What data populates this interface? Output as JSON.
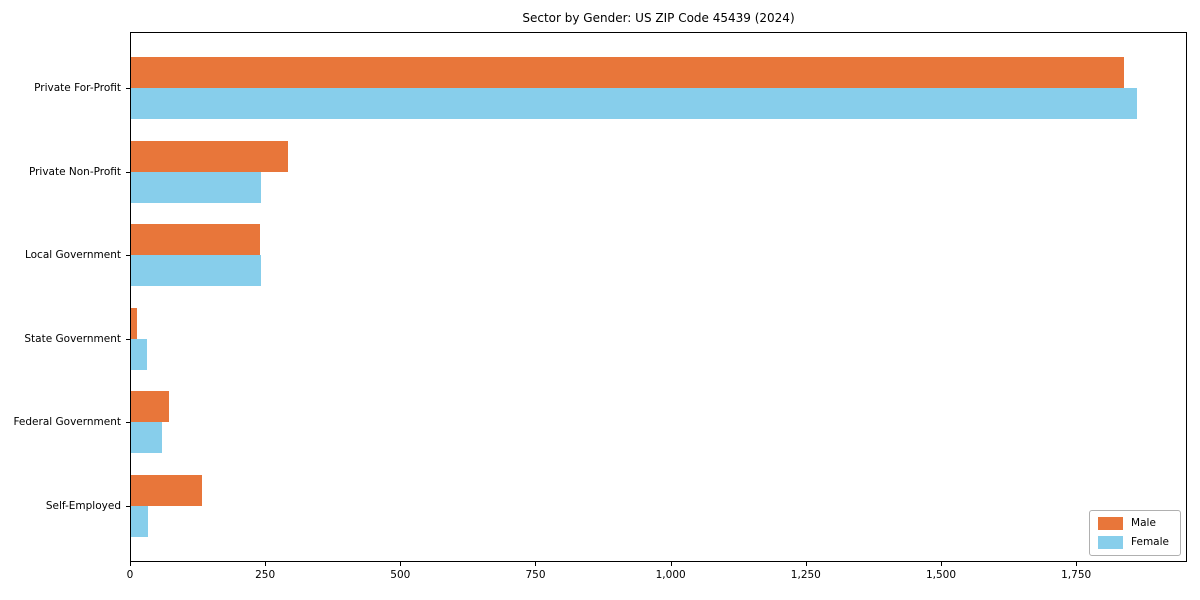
{
  "chart_data": {
    "type": "bar",
    "orientation": "horizontal",
    "title": "Sector by Gender: US ZIP Code 45439 (2024)",
    "categories": [
      "Private For-Profit",
      "Private Non-Profit",
      "Local Government",
      "State Government",
      "Federal Government",
      "Self-Employed"
    ],
    "series": [
      {
        "name": "Male",
        "color": "#E8763A",
        "values": [
          1836,
          290,
          238,
          12,
          70,
          132
        ]
      },
      {
        "name": "Female",
        "color": "#87CEEB",
        "values": [
          1861,
          240,
          240,
          30,
          58,
          32
        ]
      }
    ],
    "xlabel": "",
    "ylabel": "",
    "xlim": [
      0,
      1955
    ],
    "x_ticks": [
      0,
      250,
      500,
      750,
      1000,
      1250,
      1500,
      1750
    ],
    "x_tick_labels": [
      "0",
      "250",
      "500",
      "750",
      "1,000",
      "1,250",
      "1,500",
      "1,750"
    ],
    "grid": false,
    "legend_position": "lower right",
    "background_color": "#ffffff",
    "spine_color": "#000000"
  }
}
